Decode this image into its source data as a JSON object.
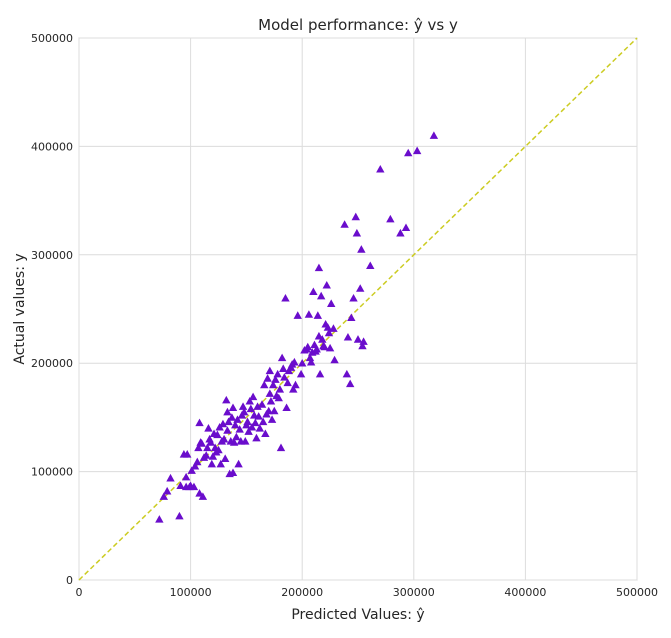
{
  "chart_data": {
    "type": "scatter",
    "title": "Model performance: ŷ vs y",
    "xlabel": "Predicted Values: ŷ",
    "ylabel": "Actual values: y",
    "xlim": [
      0,
      500000
    ],
    "ylim": [
      0,
      500000
    ],
    "xticks": [
      0,
      100000,
      200000,
      300000,
      400000,
      500000
    ],
    "yticks": [
      0,
      100000,
      200000,
      300000,
      400000,
      500000
    ],
    "xtick_labels": [
      "0",
      "100000",
      "200000",
      "300000",
      "400000",
      "500000"
    ],
    "ytick_labels": [
      "0",
      "100000",
      "200000",
      "300000",
      "400000",
      "500000"
    ],
    "grid": true,
    "marker": "triangle",
    "marker_color": "#6a0dcc",
    "reference_line": {
      "from": [
        0,
        0
      ],
      "to": [
        500000,
        500000
      ],
      "style": "dashed",
      "color": "#cccc22"
    },
    "points": [
      [
        72000,
        56000
      ],
      [
        76000,
        77000
      ],
      [
        79000,
        82000
      ],
      [
        82000,
        94000
      ],
      [
        90000,
        59000
      ],
      [
        91000,
        87000
      ],
      [
        94000,
        116000
      ],
      [
        96000,
        86000
      ],
      [
        96000,
        95000
      ],
      [
        97000,
        116000
      ],
      [
        99000,
        86000
      ],
      [
        100000,
        87000
      ],
      [
        101000,
        101000
      ],
      [
        103000,
        86000
      ],
      [
        104000,
        105000
      ],
      [
        106000,
        109000
      ],
      [
        107000,
        122000
      ],
      [
        108000,
        80000
      ],
      [
        108000,
        145000
      ],
      [
        109000,
        127000
      ],
      [
        110000,
        126000
      ],
      [
        111000,
        77000
      ],
      [
        112000,
        113000
      ],
      [
        114000,
        115000
      ],
      [
        115000,
        122000
      ],
      [
        116000,
        140000
      ],
      [
        117000,
        130000
      ],
      [
        118000,
        127000
      ],
      [
        119000,
        107000
      ],
      [
        120000,
        114000
      ],
      [
        121000,
        135000
      ],
      [
        122000,
        122000
      ],
      [
        123000,
        118000
      ],
      [
        124000,
        134000
      ],
      [
        125000,
        120000
      ],
      [
        126000,
        141000
      ],
      [
        127000,
        107000
      ],
      [
        128000,
        128000
      ],
      [
        129000,
        144000
      ],
      [
        130000,
        130000
      ],
      [
        131000,
        112000
      ],
      [
        132000,
        166000
      ],
      [
        133000,
        155000
      ],
      [
        133000,
        138000
      ],
      [
        134000,
        146000
      ],
      [
        135000,
        98000
      ],
      [
        136000,
        128000
      ],
      [
        137000,
        150000
      ],
      [
        138000,
        99000
      ],
      [
        138000,
        159000
      ],
      [
        139000,
        127000
      ],
      [
        140000,
        143000
      ],
      [
        141000,
        132000
      ],
      [
        142000,
        148000
      ],
      [
        143000,
        107000
      ],
      [
        144000,
        139000
      ],
      [
        145000,
        128000
      ],
      [
        146000,
        152000
      ],
      [
        147000,
        160000
      ],
      [
        148000,
        155000
      ],
      [
        149000,
        128000
      ],
      [
        150000,
        143000
      ],
      [
        151000,
        146000
      ],
      [
        152000,
        137000
      ],
      [
        153000,
        165000
      ],
      [
        154000,
        158000
      ],
      [
        155000,
        141000
      ],
      [
        156000,
        169000
      ],
      [
        157000,
        152000
      ],
      [
        158000,
        145000
      ],
      [
        159000,
        131000
      ],
      [
        160000,
        160000
      ],
      [
        161000,
        151000
      ],
      [
        162000,
        140000
      ],
      [
        164000,
        162000
      ],
      [
        165000,
        146000
      ],
      [
        166000,
        180000
      ],
      [
        167000,
        135000
      ],
      [
        168000,
        153000
      ],
      [
        169000,
        186000
      ],
      [
        170000,
        156000
      ],
      [
        171000,
        172000
      ],
      [
        171000,
        193000
      ],
      [
        172000,
        165000
      ],
      [
        173000,
        148000
      ],
      [
        174000,
        180000
      ],
      [
        175000,
        156000
      ],
      [
        176000,
        185000
      ],
      [
        177000,
        170000
      ],
      [
        178000,
        190000
      ],
      [
        179000,
        168000
      ],
      [
        180000,
        176000
      ],
      [
        181000,
        122000
      ],
      [
        182000,
        205000
      ],
      [
        183000,
        195000
      ],
      [
        184000,
        187000
      ],
      [
        185000,
        260000
      ],
      [
        186000,
        159000
      ],
      [
        187000,
        182000
      ],
      [
        188000,
        193000
      ],
      [
        190000,
        196000
      ],
      [
        191000,
        199000
      ],
      [
        192000,
        176000
      ],
      [
        193000,
        201000
      ],
      [
        194000,
        180000
      ],
      [
        196000,
        244000
      ],
      [
        199000,
        190000
      ],
      [
        200000,
        200000
      ],
      [
        202000,
        212000
      ],
      [
        204000,
        213000
      ],
      [
        205000,
        215000
      ],
      [
        206000,
        245000
      ],
      [
        207000,
        205000
      ],
      [
        208000,
        201000
      ],
      [
        209000,
        210000
      ],
      [
        210000,
        266000
      ],
      [
        211000,
        217000
      ],
      [
        212000,
        211000
      ],
      [
        213000,
        213000
      ],
      [
        214000,
        244000
      ],
      [
        215000,
        225000
      ],
      [
        215000,
        288000
      ],
      [
        216000,
        190000
      ],
      [
        217000,
        262000
      ],
      [
        218000,
        222000
      ],
      [
        219000,
        216000
      ],
      [
        220000,
        215000
      ],
      [
        221000,
        236000
      ],
      [
        222000,
        272000
      ],
      [
        223000,
        233000
      ],
      [
        224000,
        228000
      ],
      [
        225000,
        214000
      ],
      [
        226000,
        255000
      ],
      [
        228000,
        232000
      ],
      [
        229000,
        203000
      ],
      [
        238000,
        328000
      ],
      [
        240000,
        190000
      ],
      [
        241000,
        224000
      ],
      [
        243000,
        181000
      ],
      [
        244000,
        242000
      ],
      [
        246000,
        260000
      ],
      [
        248000,
        335000
      ],
      [
        249000,
        320000
      ],
      [
        250000,
        222000
      ],
      [
        252000,
        269000
      ],
      [
        253000,
        305000
      ],
      [
        254000,
        216000
      ],
      [
        255000,
        220000
      ],
      [
        261000,
        290000
      ],
      [
        270000,
        379000
      ],
      [
        279000,
        333000
      ],
      [
        288000,
        320000
      ],
      [
        293000,
        325000
      ],
      [
        295000,
        394000
      ],
      [
        303000,
        396000
      ],
      [
        318000,
        410000
      ]
    ]
  }
}
